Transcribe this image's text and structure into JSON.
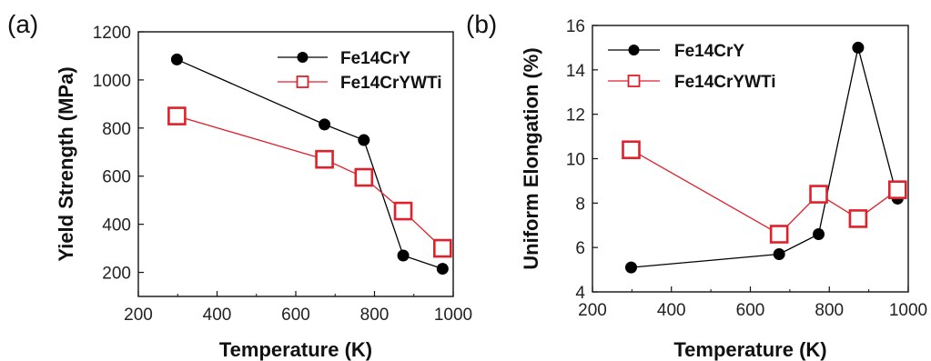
{
  "chart_data": [
    {
      "type": "line",
      "panel_label": "(a)",
      "xlabel": "Temperature (K)",
      "ylabel": "Yield Strength (MPa)",
      "xlim": [
        200,
        1000
      ],
      "ylim": [
        100,
        1200
      ],
      "x_ticks": [
        200,
        400,
        600,
        800,
        1000
      ],
      "y_ticks": [
        200,
        400,
        600,
        800,
        1000,
        1200
      ],
      "grid": false,
      "legend_position": "top-right",
      "series": [
        {
          "name": "Fe14CrY",
          "marker": "filled-circle",
          "color": "#000000",
          "x": [
            298,
            673,
            773,
            873,
            973
          ],
          "y": [
            1085,
            815,
            750,
            270,
            215
          ]
        },
        {
          "name": "Fe14CrYWTi",
          "marker": "open-square",
          "color": "#e0202a",
          "x": [
            298,
            673,
            773,
            873,
            973
          ],
          "y": [
            850,
            670,
            595,
            455,
            300
          ]
        }
      ]
    },
    {
      "type": "line",
      "panel_label": "(b)",
      "xlabel": "Temperature (K)",
      "ylabel": "Uniform Elongation (%)",
      "xlim": [
        200,
        1000
      ],
      "ylim": [
        4,
        16
      ],
      "x_ticks": [
        200,
        400,
        600,
        800,
        1000
      ],
      "y_ticks": [
        4,
        6,
        8,
        10,
        12,
        14,
        16
      ],
      "grid": false,
      "legend_position": "top-left",
      "series": [
        {
          "name": "Fe14CrY",
          "marker": "filled-circle",
          "color": "#000000",
          "x": [
            298,
            673,
            773,
            873,
            973
          ],
          "y": [
            5.1,
            5.7,
            6.6,
            15.0,
            8.2
          ]
        },
        {
          "name": "Fe14CrYWTi",
          "marker": "open-square",
          "color": "#e0202a",
          "x": [
            298,
            673,
            773,
            873,
            973
          ],
          "y": [
            10.4,
            6.6,
            8.4,
            7.3,
            8.6
          ]
        }
      ]
    }
  ]
}
